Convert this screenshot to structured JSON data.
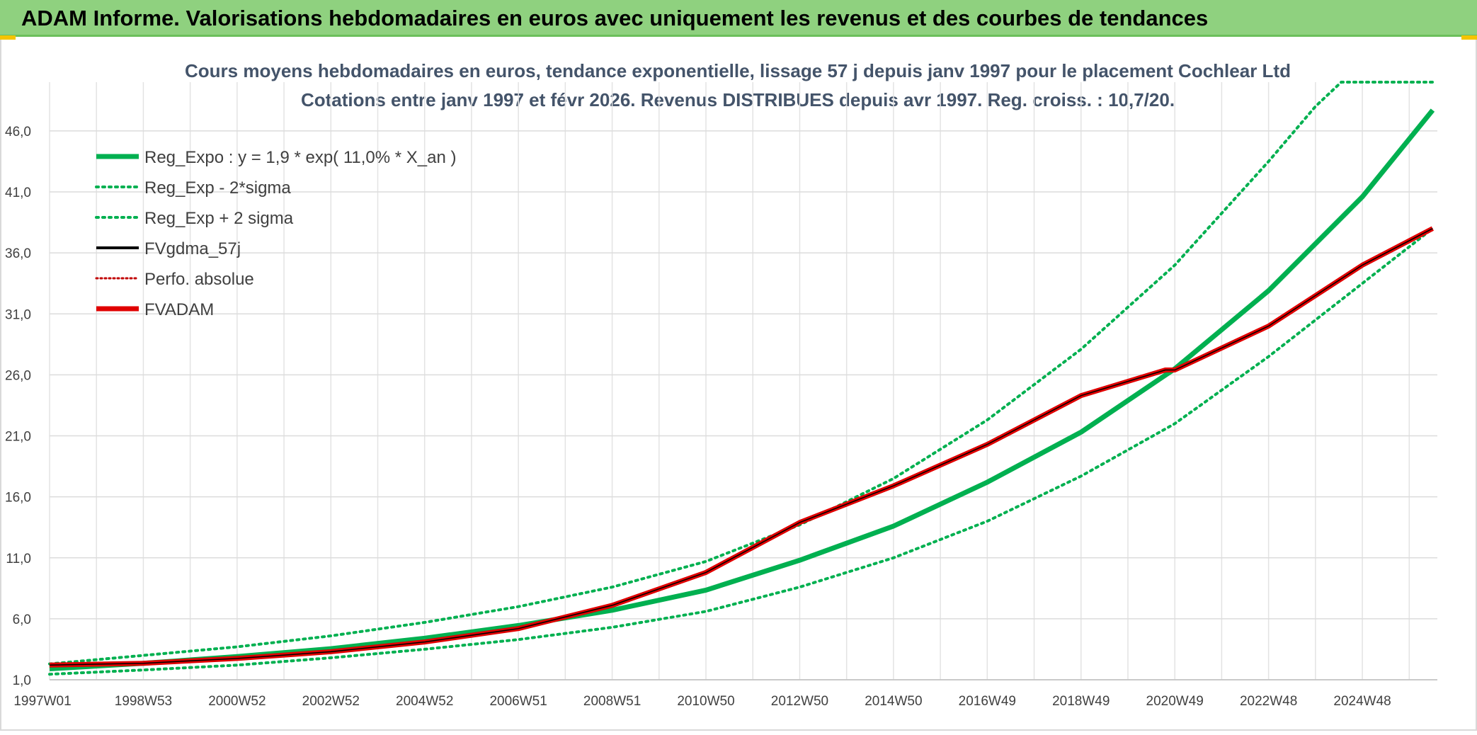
{
  "banner": {
    "title": "ADAM Informe. Valorisations hebdomadaires en euros avec uniquement les revenus et des courbes de tendances"
  },
  "chart_data": {
    "type": "line",
    "title": "Cours moyens hebdomadaires en euros, tendance exponentielle, lissage 57 j depuis janv 1997 pour le placement Cochlear Ltd",
    "subtitle": "Cotations entre janv 1997 et févr 2026. Revenus DISTRIBUES depuis avr 1997. Reg. croiss. : 10,7/20.",
    "x_tick_labels": [
      "1997W01",
      "1998W53",
      "2000W52",
      "2002W52",
      "2004W52",
      "2006W51",
      "2008W51",
      "2010W50",
      "2012W50",
      "2014W50",
      "2016W49",
      "2018W49",
      "2020W49",
      "2022W48",
      "2024W48"
    ],
    "x_tick_years": [
      1997,
      1999,
      2001,
      2003,
      2005,
      2007,
      2009,
      2011,
      2013,
      2015,
      2017,
      2019,
      2021,
      2023,
      2025
    ],
    "xlim": [
      1997,
      2026.6
    ],
    "y_tick_labels": [
      "1,0",
      "6,0",
      "11,0",
      "16,0",
      "21,0",
      "26,0",
      "31,0",
      "36,0",
      "41,0",
      "46,0"
    ],
    "y_ticks": [
      1,
      6,
      11,
      16,
      21,
      26,
      31,
      36,
      41,
      46
    ],
    "ylim": [
      1,
      50
    ],
    "grid": true,
    "legend_position": "top-left",
    "legend": [
      {
        "label": "Reg_Expo : y = 1,9 * exp( 11,0% *  X_an )",
        "color": "#00b050",
        "style": "solid-thick"
      },
      {
        "label": "Reg_Exp - 2*sigma",
        "color": "#00b050",
        "style": "dotted"
      },
      {
        "label": "Reg_Exp + 2 sigma",
        "color": "#00b050",
        "style": "dotted"
      },
      {
        "label": "FVgdma_57j",
        "color": "#000000",
        "style": "solid"
      },
      {
        "label": "Perfo. absolue",
        "color": "#c00000",
        "style": "dotted"
      },
      {
        "label": "FVADAM",
        "color": "#e00000",
        "style": "solid-thick"
      }
    ],
    "series": [
      {
        "name": "Reg_Expo : y = 1,9 * exp( 11,0% *  X_an )",
        "x": [
          1997,
          1999,
          2001,
          2003,
          2005,
          2007,
          2009,
          2011,
          2013,
          2015,
          2017,
          2019,
          2021,
          2023,
          2025,
          2026.5
        ],
        "values": [
          1.9,
          2.35,
          2.9,
          3.55,
          4.4,
          5.45,
          6.7,
          8.35,
          10.8,
          13.6,
          17.2,
          21.3,
          26.5,
          32.9,
          40.6,
          47.7
        ]
      },
      {
        "name": "Reg_Exp - 2*sigma",
        "x": [
          1997,
          1999,
          2001,
          2003,
          2005,
          2007,
          2009,
          2011,
          2013,
          2015,
          2017,
          2019,
          2021,
          2023,
          2025,
          2026.5
        ],
        "values": [
          1.45,
          1.8,
          2.2,
          2.8,
          3.5,
          4.3,
          5.3,
          6.6,
          8.6,
          11.0,
          14.0,
          17.7,
          22.0,
          27.5,
          33.5,
          38.0
        ]
      },
      {
        "name": "Reg_Exp + 2 sigma",
        "x": [
          1997,
          1999,
          2001,
          2003,
          2005,
          2007,
          2009,
          2011,
          2013,
          2015,
          2017,
          2019,
          2021,
          2023,
          2024,
          2024.55,
          2026.5
        ],
        "values": [
          2.3,
          3.0,
          3.7,
          4.6,
          5.7,
          7.0,
          8.6,
          10.7,
          13.7,
          17.5,
          22.3,
          28.1,
          35.0,
          43.5,
          48.0,
          50.0,
          50.0
        ]
      },
      {
        "name": "FVADAM",
        "x": [
          1997,
          1999,
          2001,
          2003,
          2005,
          2007,
          2009,
          2011,
          2013,
          2015,
          2017,
          2019,
          2020.8,
          2021,
          2023,
          2025,
          2026.5
        ],
        "values": [
          2.2,
          2.35,
          2.75,
          3.3,
          4.1,
          5.2,
          7.1,
          9.8,
          13.9,
          16.9,
          20.3,
          24.3,
          26.4,
          26.4,
          30.0,
          35.0,
          38.0
        ]
      }
    ]
  }
}
